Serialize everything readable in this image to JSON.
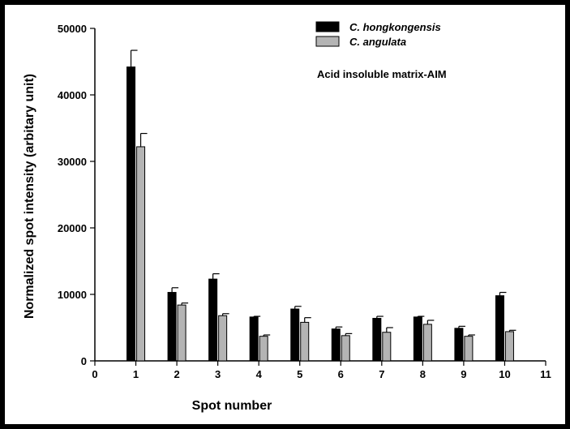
{
  "chart_data": {
    "type": "bar",
    "title": "",
    "annotation": "Acid insoluble matrix-AIM",
    "xlabel": "Spot number",
    "ylabel": "Normalized spot intensity (arbitary unit)",
    "xlim": [
      0,
      11
    ],
    "ylim": [
      0,
      50000
    ],
    "x_ticks": [
      0,
      1,
      2,
      3,
      4,
      5,
      6,
      7,
      8,
      9,
      10,
      11
    ],
    "y_ticks": [
      0,
      10000,
      20000,
      30000,
      40000,
      50000
    ],
    "categories": [
      1,
      2,
      3,
      4,
      5,
      6,
      7,
      8,
      9,
      10
    ],
    "series": [
      {
        "name": "C. hongkongensis",
        "color": "#000000",
        "values": [
          44200,
          10300,
          12300,
          6600,
          7800,
          4800,
          6400,
          6600,
          4900,
          9800
        ],
        "errors": [
          2500,
          700,
          800,
          100,
          400,
          300,
          300,
          100,
          300,
          500
        ]
      },
      {
        "name": "C. angulata",
        "color": "#b4b4b4",
        "values": [
          32200,
          8400,
          6800,
          3700,
          5800,
          3800,
          4300,
          5500,
          3700,
          4400
        ],
        "errors": [
          2000,
          300,
          300,
          200,
          700,
          300,
          700,
          600,
          200,
          200
        ]
      }
    ],
    "legend_position": "top-right",
    "grid": false
  }
}
